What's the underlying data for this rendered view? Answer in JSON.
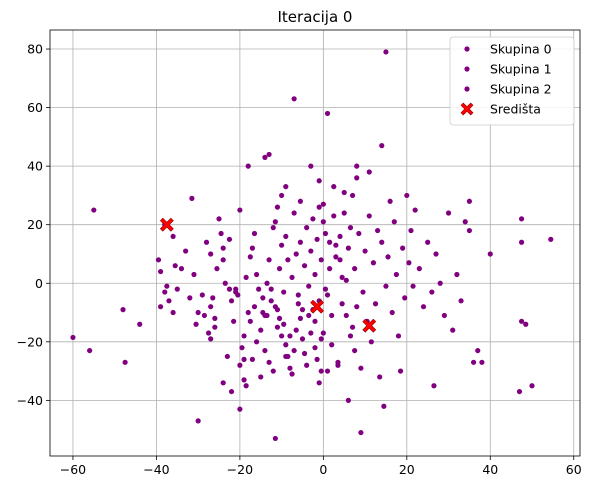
{
  "chart_data": {
    "type": "scatter",
    "title": "Iteracija 0",
    "xlabel": "",
    "ylabel": "",
    "xlim": [
      -65.5,
      61.5
    ],
    "ylim": [
      -59,
      86.5
    ],
    "xticks": [
      -60,
      -40,
      -20,
      0,
      20,
      40,
      60
    ],
    "yticks": [
      -40,
      -20,
      0,
      20,
      40,
      60,
      80
    ],
    "grid": true,
    "legend_position": "top-right",
    "colors": {
      "points": "#800080",
      "centers": "#ff0000"
    },
    "series": [
      {
        "name": "Skupina 0",
        "marker": "dot",
        "points": [
          [
            -60,
            -18.5
          ],
          [
            -56,
            -23
          ],
          [
            -55,
            25
          ],
          [
            -48,
            -9
          ],
          [
            -47.5,
            -27
          ],
          [
            -44,
            -14
          ],
          [
            -39.5,
            8
          ],
          [
            -39,
            -8
          ],
          [
            -39,
            4
          ],
          [
            -38,
            -3
          ],
          [
            -37.5,
            -1
          ],
          [
            -37,
            -6
          ],
          [
            -36,
            -10
          ],
          [
            -36,
            16
          ],
          [
            -35.5,
            6
          ],
          [
            -35,
            -2
          ],
          [
            -34,
            5
          ],
          [
            -33,
            11
          ],
          [
            -32,
            -5
          ],
          [
            -31,
            3
          ],
          [
            -30.5,
            -14
          ],
          [
            -30,
            -10
          ],
          [
            -29,
            -4
          ],
          [
            -28.5,
            -11
          ],
          [
            -28,
            14
          ],
          [
            -27.5,
            -17
          ],
          [
            -27,
            -19
          ],
          [
            -27,
            -8
          ],
          [
            -26,
            -15
          ],
          [
            -25,
            22
          ],
          [
            -24.5,
            17
          ],
          [
            -24,
            8
          ],
          [
            -23,
            -25
          ],
          [
            -22.5,
            15
          ],
          [
            -22,
            -6
          ],
          [
            -21.5,
            -13
          ],
          [
            -21,
            -3
          ],
          [
            -20.5,
            -4
          ],
          [
            -20,
            -43
          ],
          [
            -20,
            -28
          ],
          [
            -19.5,
            -22
          ],
          [
            -19,
            -33
          ],
          [
            -18.5,
            -35
          ],
          [
            -18,
            40
          ],
          [
            -17.5,
            -13
          ],
          [
            -17,
            -26
          ],
          [
            -16.5,
            -8
          ],
          [
            -16,
            -20
          ],
          [
            -15.5,
            -2
          ],
          [
            -15,
            -16
          ],
          [
            -14.5,
            -10
          ],
          [
            -14,
            -23
          ],
          [
            -13.5,
            -11
          ],
          [
            -13,
            -27
          ],
          [
            -12.5,
            -6
          ],
          [
            -12,
            -30
          ],
          [
            -11.5,
            -53
          ],
          [
            -11,
            -9
          ],
          [
            -10.5,
            -12
          ],
          [
            -10,
            -18
          ],
          [
            -9.5,
            -14
          ],
          [
            -9,
            -21
          ],
          [
            -8.5,
            -25
          ],
          [
            -8,
            -29
          ],
          [
            -7.5,
            -31
          ],
          [
            -7,
            -23
          ],
          [
            -6.5,
            -16
          ],
          [
            -6,
            -7
          ],
          [
            -5.5,
            -12
          ],
          [
            -5,
            -19
          ],
          [
            -4.5,
            -24
          ],
          [
            -4,
            -28
          ],
          [
            -3.5,
            -11
          ],
          [
            -3,
            -17
          ],
          [
            -2.5,
            -9
          ],
          [
            -2,
            -22
          ],
          [
            -1.5,
            -26
          ],
          [
            -1,
            -34
          ],
          [
            -0.5,
            -30
          ],
          [
            0,
            -17
          ]
        ]
      },
      {
        "name": "Skupina 1",
        "marker": "dot",
        "points": [
          [
            -38,
            20
          ],
          [
            -31.5,
            29
          ],
          [
            -27,
            10
          ],
          [
            -26.5,
            -5
          ],
          [
            -26,
            -12
          ],
          [
            -25.5,
            5
          ],
          [
            -24,
            12
          ],
          [
            -23.5,
            0
          ],
          [
            -22.5,
            -2
          ],
          [
            -22,
            -37
          ],
          [
            -21,
            -2
          ],
          [
            -20,
            25
          ],
          [
            -19,
            -26
          ],
          [
            -19,
            -18
          ],
          [
            -18.5,
            2
          ],
          [
            -18,
            -10
          ],
          [
            -17.5,
            9
          ],
          [
            -17,
            12
          ],
          [
            -16.5,
            17
          ],
          [
            -16,
            3
          ],
          [
            -15,
            -32
          ],
          [
            -14.5,
            -5
          ],
          [
            -14,
            43
          ],
          [
            -14,
            -11
          ],
          [
            -13.5,
            0
          ],
          [
            -13,
            8
          ],
          [
            -12.5,
            -2
          ],
          [
            -12,
            19
          ],
          [
            -11.5,
            -8
          ],
          [
            -11.5,
            21
          ],
          [
            -11,
            26
          ],
          [
            -11,
            -15
          ],
          [
            -10.5,
            5
          ],
          [
            -10,
            13
          ],
          [
            -10,
            30
          ],
          [
            -9.5,
            -3
          ],
          [
            -9,
            16
          ],
          [
            -9,
            33
          ],
          [
            -8.5,
            8
          ],
          [
            -8,
            -18
          ],
          [
            -7.5,
            2
          ],
          [
            -7,
            24
          ],
          [
            -7,
            63
          ],
          [
            -6.5,
            10
          ],
          [
            -6,
            -4
          ],
          [
            -5.5,
            14
          ],
          [
            -5.5,
            28
          ],
          [
            -5,
            -9
          ],
          [
            -4.5,
            6
          ],
          [
            -4,
            19
          ],
          [
            -3.5,
            -1
          ],
          [
            -3,
            11
          ],
          [
            -3,
            40
          ],
          [
            -2.5,
            22
          ],
          [
            -2,
            3
          ],
          [
            -2,
            -13
          ],
          [
            -1.5,
            15
          ],
          [
            -1,
            -6
          ],
          [
            -1,
            35
          ],
          [
            -0.5,
            8
          ],
          [
            -0.5,
            -19
          ],
          [
            0,
            27
          ],
          [
            0.5,
            -2
          ],
          [
            0.5,
            17
          ],
          [
            1,
            58
          ],
          [
            1,
            -30
          ],
          [
            1.5,
            5
          ],
          [
            2,
            -11
          ],
          [
            2.5,
            23
          ],
          [
            3,
            13
          ],
          [
            3.5,
            -27
          ],
          [
            4,
            8
          ],
          [
            4.5,
            -7
          ],
          [
            5,
            31
          ],
          [
            5.5,
            1
          ],
          [
            6,
            -40
          ],
          [
            6.5,
            19
          ],
          [
            7,
            -15
          ],
          [
            7.5,
            -23
          ],
          [
            8,
            36
          ]
        ]
      },
      {
        "name": "Skupina 2",
        "marker": "dot",
        "points": [
          [
            -1,
            26
          ],
          [
            0,
            21
          ],
          [
            1,
            -4
          ],
          [
            1.5,
            14
          ],
          [
            2,
            -21
          ],
          [
            2.5,
            33
          ],
          [
            3,
            9
          ],
          [
            3.5,
            -28
          ],
          [
            4,
            16
          ],
          [
            4.5,
            2
          ],
          [
            5,
            24
          ],
          [
            5.5,
            -11
          ],
          [
            6,
            12
          ],
          [
            6.5,
            -18
          ],
          [
            7,
            30
          ],
          [
            7.5,
            5
          ],
          [
            8,
            -8
          ],
          [
            8,
            40
          ],
          [
            8.5,
            17
          ],
          [
            9,
            -29
          ],
          [
            9,
            -51
          ],
          [
            9.5,
            -3
          ],
          [
            10,
            11
          ],
          [
            10.5,
            -13
          ],
          [
            11,
            38
          ],
          [
            11,
            23
          ],
          [
            11.5,
            -20
          ],
          [
            12,
            7
          ],
          [
            12.5,
            -7
          ],
          [
            13,
            18
          ],
          [
            13.5,
            -32
          ],
          [
            14,
            47
          ],
          [
            14,
            14
          ],
          [
            14.5,
            -42
          ],
          [
            15,
            79
          ],
          [
            15,
            -1
          ],
          [
            15.5,
            9
          ],
          [
            16,
            28
          ],
          [
            16.5,
            -10
          ],
          [
            17,
            21
          ],
          [
            17.5,
            3
          ],
          [
            18,
            -18
          ],
          [
            18.5,
            -30
          ],
          [
            19,
            12
          ],
          [
            19.5,
            -5
          ],
          [
            20,
            30
          ],
          [
            20.5,
            7
          ],
          [
            21,
            18
          ],
          [
            21.5,
            -1
          ],
          [
            22,
            25
          ],
          [
            23,
            5
          ],
          [
            24,
            -8
          ],
          [
            25,
            14
          ],
          [
            26,
            -3
          ],
          [
            26.5,
            -35
          ],
          [
            27,
            10
          ],
          [
            28,
            0
          ],
          [
            29,
            -11
          ],
          [
            30,
            24
          ],
          [
            31,
            -16
          ],
          [
            32,
            3
          ],
          [
            33,
            -6
          ],
          [
            34,
            21
          ],
          [
            35,
            18
          ],
          [
            35,
            28
          ],
          [
            36,
            -27
          ],
          [
            37,
            -23
          ],
          [
            38,
            -27
          ],
          [
            40,
            10
          ],
          [
            47,
            -37
          ],
          [
            47.5,
            22
          ],
          [
            47.5,
            14
          ],
          [
            47.5,
            -13
          ],
          [
            48.5,
            -14
          ],
          [
            50,
            -35
          ],
          [
            54.5,
            15
          ],
          [
            -13,
            44
          ],
          [
            -30,
            -47
          ],
          [
            -24,
            -34
          ],
          [
            -9,
            -25
          ]
        ]
      },
      {
        "name": "Središta",
        "marker": "X",
        "points": [
          [
            -37.5,
            20
          ],
          [
            -1.5,
            -8
          ],
          [
            11,
            -14.5
          ]
        ]
      }
    ]
  }
}
